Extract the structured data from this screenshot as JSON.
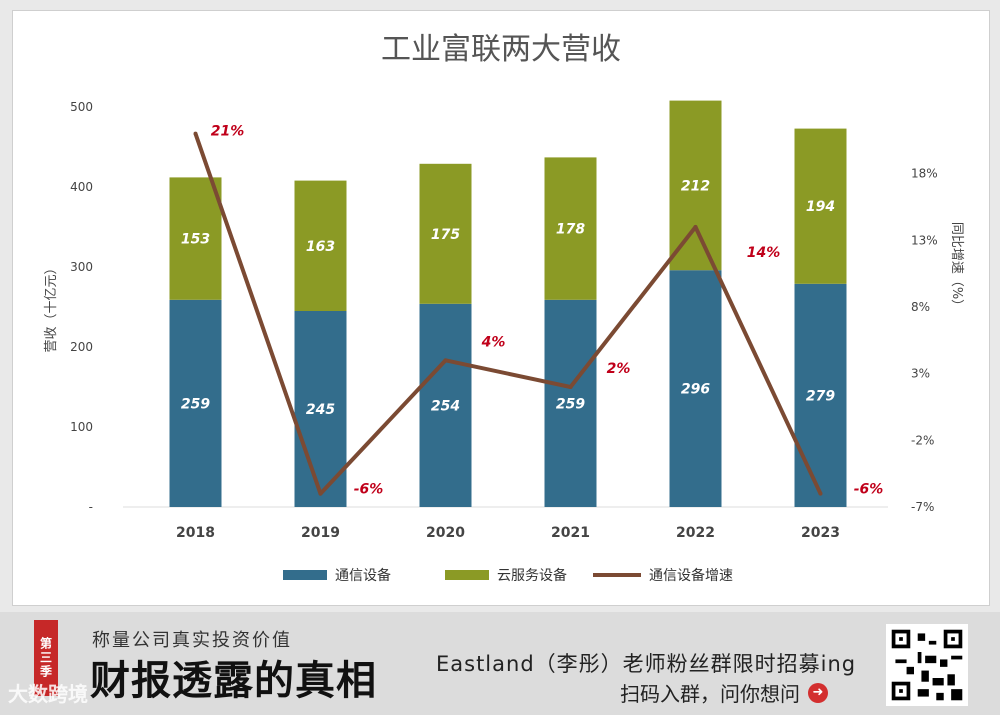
{
  "chart_data": {
    "type": "bar",
    "title": "工业富联两大营收",
    "categories": [
      "2018",
      "2019",
      "2020",
      "2021",
      "2022",
      "2023"
    ],
    "series": [
      {
        "name": "通信设备",
        "type": "bar",
        "stack": "revenue",
        "color": "#336d8c",
        "values": [
          259,
          245,
          254,
          259,
          296,
          279
        ]
      },
      {
        "name": "云服务设备",
        "type": "bar",
        "stack": "revenue",
        "color": "#8b9a25",
        "values": [
          153,
          163,
          175,
          178,
          212,
          194
        ]
      },
      {
        "name": "通信设备增速",
        "type": "line",
        "axis": "right",
        "color": "#7b4a33",
        "values": [
          21,
          -6,
          4,
          2,
          14,
          -6
        ]
      }
    ],
    "growth_labels": [
      "21%",
      "-6%",
      "4%",
      "2%",
      "14%",
      "-6%"
    ],
    "ylabel": "营收（十亿元）",
    "ylabel_right": "同比增速（%）",
    "ylim": [
      0,
      500
    ],
    "yticks": [
      "-",
      "100",
      "200",
      "300",
      "400",
      "500"
    ],
    "ylim_right": [
      -7,
      23
    ],
    "yticks_right": [
      "-7%",
      "-2%",
      "3%",
      "8%",
      "13%",
      "18%"
    ],
    "yticks_right_values": [
      -7,
      -2,
      3,
      8,
      13,
      18
    ],
    "legend": "bottom",
    "label_color": "#c0001a"
  },
  "banner": {
    "season_tag": "第三季",
    "subtitle": "称量公司真实投资价值",
    "title": "财报透露的真相",
    "recruit": "Eastland（李彤）老师粉丝群限时招募ing",
    "cta": "扫码入群，问你想问",
    "watermark": "大数跨境"
  }
}
